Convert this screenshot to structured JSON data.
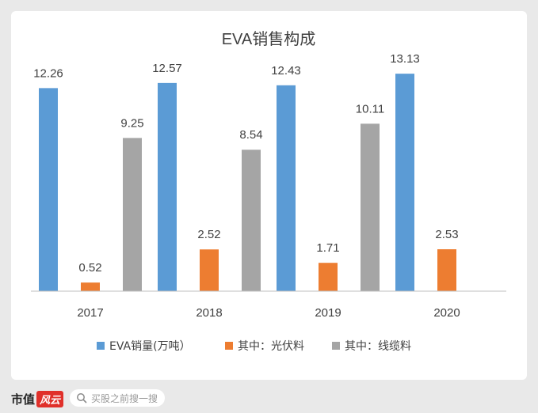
{
  "chart_data": {
    "type": "bar",
    "title": "EVA销售构成",
    "categories": [
      "2017",
      "2018",
      "2019",
      "2020"
    ],
    "series": [
      {
        "name": "EVA销量(万吨）",
        "color": "#5b9bd5",
        "values": [
          12.26,
          12.57,
          12.43,
          13.13
        ]
      },
      {
        "name": "其中：光伏料",
        "color": "#ed7d31",
        "values": [
          0.52,
          2.52,
          1.71,
          2.53
        ]
      },
      {
        "name": "其中：线缆料",
        "color": "#a5a5a5",
        "values": [
          9.25,
          8.54,
          10.11,
          null
        ]
      }
    ],
    "ylim": [
      0,
      15
    ],
    "grid": false,
    "legend": "bottom"
  },
  "footer": {
    "brand": "市值",
    "brand_badge": "风云",
    "search_placeholder": "买股之前搜一搜"
  }
}
